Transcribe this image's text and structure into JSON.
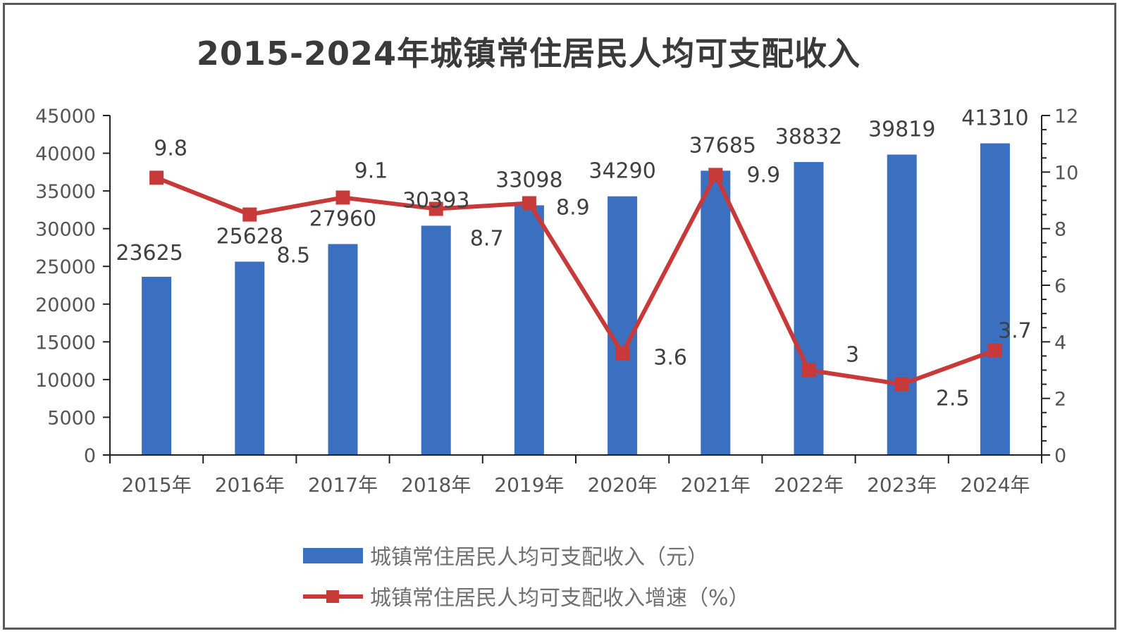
{
  "chart_data": {
    "type": "bar+line",
    "title": "2015-2024年城镇常住居民人均可支配收入",
    "categories": [
      "2015年",
      "2016年",
      "2017年",
      "2018年",
      "2019年",
      "2020年",
      "2021年",
      "2022年",
      "2023年",
      "2024年"
    ],
    "series": [
      {
        "name": "城镇常住居民人均可支配收入（元）",
        "type": "bar",
        "axis": "left",
        "color": "#3b6fbf",
        "values": [
          23625,
          25628,
          27960,
          30393,
          33098,
          34290,
          37685,
          38832,
          39819,
          41310
        ],
        "labels": [
          "23625",
          "25628",
          "27960",
          "30393",
          "33098",
          "34290",
          "37685",
          "38832",
          "39819",
          "41310"
        ]
      },
      {
        "name": "城镇常住居民人均可支配收入增速（%）",
        "type": "line",
        "axis": "right",
        "color": "#c83a3a",
        "values": [
          9.8,
          8.5,
          9.1,
          8.7,
          8.9,
          3.6,
          9.9,
          3,
          2.5,
          3.7
        ],
        "labels": [
          "9.8",
          "8.5",
          "9.1",
          "8.7",
          "8.9",
          "3.6",
          "9.9",
          "3",
          "2.5",
          "3.7"
        ]
      }
    ],
    "left_axis": {
      "min": 0,
      "max": 45000,
      "ticks": [
        "0",
        "5000",
        "10000",
        "15000",
        "20000",
        "25000",
        "30000",
        "35000",
        "40000",
        "45000"
      ]
    },
    "right_axis": {
      "min": 0,
      "max": 12,
      "ticks": [
        "0",
        "2",
        "4",
        "6",
        "8",
        "10",
        "12"
      ]
    },
    "legend_position": "bottom",
    "grid": false
  }
}
